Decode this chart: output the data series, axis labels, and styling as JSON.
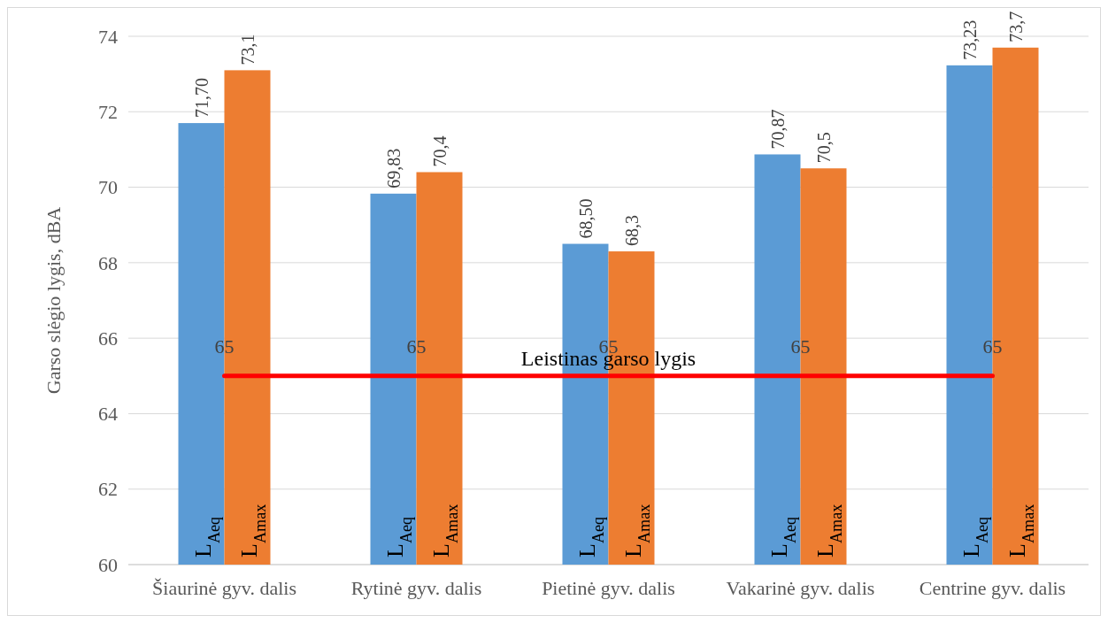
{
  "chart_data": {
    "type": "bar",
    "ylabel": "Garso slėgio lygis, dBA",
    "categories": [
      "Šiaurinė gyv. dalis",
      "Rytinė gyv. dalis",
      "Pietinė gyv. dalis",
      "Vakarinė gyv. dalis",
      "Centrine gyv. dalis"
    ],
    "series": [
      {
        "name": "L$_{Aeq}$",
        "color": "#5b9bd5",
        "values": [
          71.7,
          69.83,
          68.5,
          70.87,
          73.23
        ],
        "value_labels": [
          "71,70",
          "69,83",
          "68,50",
          "70,87",
          "73,23"
        ]
      },
      {
        "name": "L$_{Amax}$",
        "color": "#ed7d31",
        "values": [
          73.1,
          70.4,
          68.3,
          70.5,
          73.7
        ],
        "value_labels": [
          "73,1",
          "70,4",
          "68,3",
          "70,5",
          "73,7"
        ]
      },
      {
        "name": "Leistinas garso lygis",
        "type": "line",
        "color": "#ff0000",
        "values": [
          65,
          65,
          65,
          65,
          65
        ],
        "value_labels": [
          "65",
          "65",
          "65",
          "65",
          "65"
        ]
      }
    ],
    "ylim": [
      60,
      74
    ],
    "yticks": [
      60,
      62,
      64,
      66,
      68,
      70,
      72,
      74
    ],
    "grid": "y",
    "marker": "none"
  }
}
